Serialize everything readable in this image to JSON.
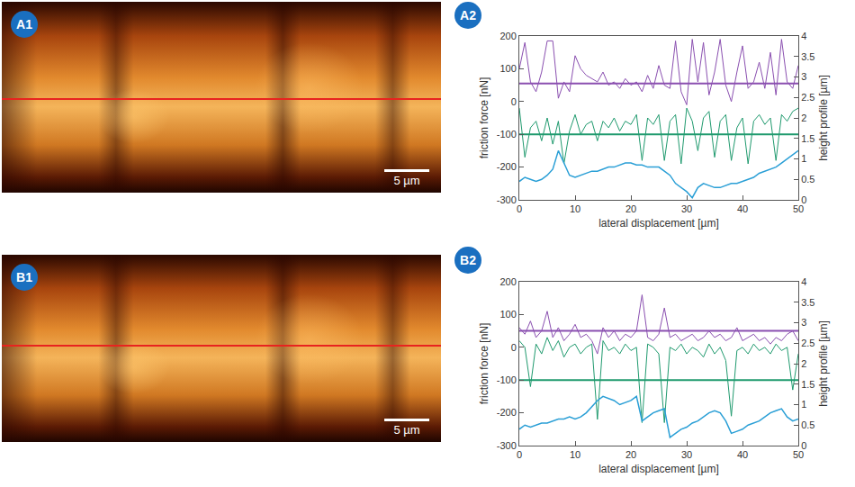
{
  "images": [
    {
      "label": "A1",
      "scale_bar": "5 µm"
    },
    {
      "label": "B1",
      "scale_bar": "5 µm"
    }
  ],
  "chart_data": [
    {
      "label": "A2",
      "type": "line",
      "x_label": "lateral displacement [µm]",
      "y_label": "friction force [nN]",
      "y2_label": "height profile [µm]",
      "xlim": [
        0,
        50
      ],
      "xticks": [
        0,
        10,
        20,
        30,
        40,
        50
      ],
      "ylim": [
        -300,
        200
      ],
      "yticks": [
        -300,
        -200,
        -100,
        0,
        100,
        200
      ],
      "y2lim": [
        0,
        4
      ],
      "y2ticks": [
        0,
        0.5,
        1,
        1.5,
        2,
        2.5,
        3,
        3.5,
        4
      ],
      "grid": false,
      "x": [
        0,
        1,
        2,
        3,
        4,
        5,
        6,
        7,
        8,
        9,
        10,
        11,
        12,
        13,
        14,
        15,
        16,
        17,
        18,
        19,
        20,
        21,
        22,
        23,
        24,
        25,
        26,
        27,
        28,
        29,
        30,
        31,
        32,
        33,
        34,
        35,
        36,
        37,
        38,
        39,
        40,
        41,
        42,
        43,
        44,
        45,
        46,
        47,
        48,
        49,
        50
      ],
      "series": [
        {
          "color": "#8a4fb0",
          "values": [
            100,
            180,
            60,
            30,
            90,
            185,
            185,
            10,
            60,
            30,
            140,
            100,
            80,
            70,
            60,
            90,
            50,
            60,
            40,
            70,
            50,
            60,
            30,
            80,
            40,
            110,
            50,
            40,
            185,
            30,
            -10,
            190,
            60,
            180,
            20,
            90,
            190,
            50,
            0,
            90,
            170,
            40,
            60,
            120,
            40,
            150,
            20,
            190,
            60,
            40,
            110
          ]
        },
        {
          "color": "#1f9a6e",
          "values": [
            -20,
            -170,
            -80,
            -60,
            -120,
            -50,
            -130,
            -60,
            -190,
            -90,
            -40,
            -100,
            -70,
            -60,
            -120,
            -60,
            -80,
            -50,
            -90,
            -60,
            -70,
            -40,
            -180,
            -50,
            -70,
            -40,
            -180,
            -60,
            -40,
            -190,
            -20,
            -60,
            -150,
            -50,
            -30,
            -170,
            -60,
            -40,
            -180,
            -80,
            -50,
            -190,
            -60,
            -40,
            -70,
            -50,
            -180,
            -40,
            -60,
            -30,
            -20
          ]
        },
        {
          "color": "#8a4fb0",
          "x": [
            0,
            50
          ],
          "values": [
            55,
            55
          ]
        },
        {
          "color": "#1f9a6e",
          "x": [
            0,
            50
          ],
          "values": [
            -100,
            -100
          ]
        },
        {
          "color": "#2a9fd6",
          "axis": "y2",
          "values": [
            0.45,
            0.55,
            0.5,
            0.45,
            0.5,
            0.6,
            0.75,
            1.2,
            0.9,
            0.6,
            0.55,
            0.6,
            0.65,
            0.7,
            0.7,
            0.75,
            0.8,
            0.8,
            0.85,
            0.9,
            0.9,
            0.85,
            0.85,
            0.8,
            0.8,
            0.8,
            0.7,
            0.6,
            0.4,
            0.3,
            0.2,
            0.05,
            0.3,
            0.4,
            0.35,
            0.3,
            0.3,
            0.35,
            0.4,
            0.4,
            0.45,
            0.5,
            0.55,
            0.65,
            0.7,
            0.75,
            0.8,
            0.9,
            1.0,
            1.1,
            1.2
          ]
        }
      ]
    },
    {
      "label": "B2",
      "type": "line",
      "x_label": "lateral displacement [µm]",
      "y_label": "friction force [nN]",
      "y2_label": "height profile [µm]",
      "xlim": [
        0,
        50
      ],
      "xticks": [
        0,
        10,
        20,
        30,
        40,
        50
      ],
      "ylim": [
        -300,
        200
      ],
      "yticks": [
        -300,
        -200,
        -100,
        0,
        100,
        200
      ],
      "y2lim": [
        0,
        4
      ],
      "y2ticks": [
        0,
        0.5,
        1,
        1.5,
        2,
        2.5,
        3,
        3.5,
        4
      ],
      "grid": false,
      "x": [
        0,
        1,
        2,
        3,
        4,
        5,
        6,
        7,
        8,
        9,
        10,
        11,
        12,
        13,
        14,
        15,
        16,
        17,
        18,
        19,
        20,
        21,
        22,
        23,
        24,
        25,
        26,
        27,
        28,
        29,
        30,
        31,
        32,
        33,
        34,
        35,
        36,
        37,
        38,
        39,
        40,
        41,
        42,
        43,
        44,
        45,
        46,
        47,
        48,
        49,
        50
      ],
      "series": [
        {
          "color": "#8a4fb0",
          "values": [
            60,
            40,
            80,
            30,
            50,
            110,
            30,
            60,
            20,
            40,
            70,
            30,
            40,
            20,
            -20,
            60,
            30,
            50,
            20,
            40,
            30,
            50,
            160,
            30,
            20,
            40,
            120,
            30,
            40,
            20,
            30,
            40,
            20,
            30,
            50,
            30,
            40,
            20,
            30,
            60,
            20,
            30,
            40,
            20,
            30,
            10,
            30,
            20,
            40,
            50,
            20
          ]
        },
        {
          "color": "#1f9a6e",
          "values": [
            20,
            0,
            -120,
            10,
            -20,
            30,
            -10,
            20,
            -30,
            0,
            10,
            -20,
            0,
            10,
            -220,
            20,
            -10,
            0,
            -20,
            10,
            -10,
            0,
            -230,
            10,
            0,
            -20,
            -230,
            0,
            -10,
            10,
            -20,
            0,
            -10,
            -30,
            10,
            -20,
            0,
            -40,
            -210,
            -10,
            0,
            -20,
            10,
            -10,
            0,
            -20,
            10,
            -10,
            0,
            -130,
            -20
          ]
        },
        {
          "color": "#8a4fb0",
          "x": [
            0,
            50
          ],
          "values": [
            50,
            50
          ]
        },
        {
          "color": "#1f9a6e",
          "x": [
            0,
            50
          ],
          "values": [
            -100,
            -100
          ]
        },
        {
          "color": "#2a9fd6",
          "axis": "y2",
          "values": [
            0.4,
            0.5,
            0.45,
            0.5,
            0.55,
            0.55,
            0.6,
            0.65,
            0.65,
            0.7,
            0.65,
            0.7,
            0.8,
            0.95,
            1.1,
            1.2,
            1.15,
            1.1,
            1.0,
            1.05,
            1.1,
            1.2,
            0.6,
            0.7,
            0.8,
            0.85,
            0.9,
            0.2,
            0.3,
            0.4,
            0.45,
            0.55,
            0.6,
            0.7,
            0.8,
            0.85,
            0.8,
            0.6,
            0.3,
            0.35,
            0.4,
            0.5,
            0.55,
            0.6,
            0.7,
            0.8,
            0.85,
            0.9,
            0.7,
            0.6,
            0.65
          ]
        }
      ]
    }
  ]
}
